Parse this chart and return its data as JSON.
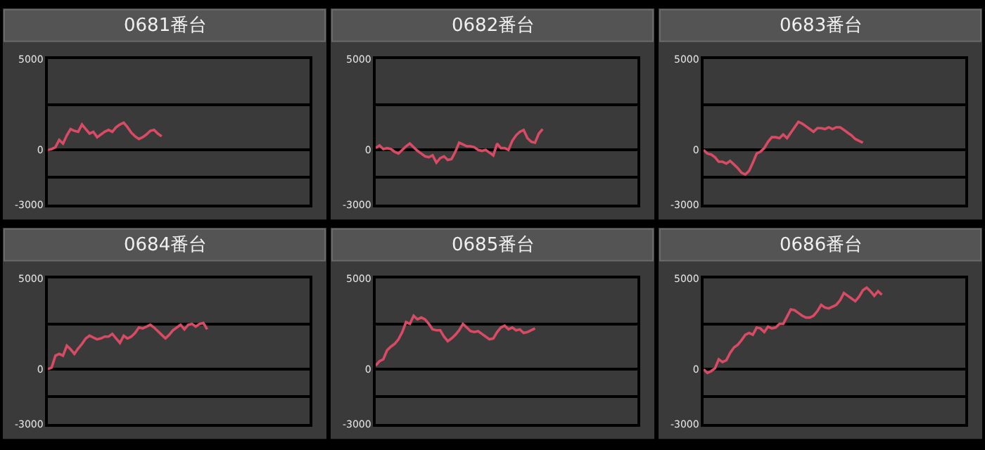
{
  "chart_data": [
    {
      "type": "line",
      "title": "0681番台",
      "categories": [
        null,
        null,
        null,
        null,
        null,
        null,
        null,
        null,
        null,
        null,
        null,
        null,
        null,
        null,
        null,
        null,
        null,
        null,
        null,
        null,
        null,
        null,
        null,
        null,
        null,
        null,
        null,
        null,
        null,
        null,
        null,
        null,
        null,
        null,
        null,
        null,
        null,
        null,
        null,
        null,
        null,
        null,
        null,
        null,
        null,
        null,
        null,
        null,
        null,
        null,
        null,
        null,
        null,
        null,
        null,
        null,
        null,
        null,
        null,
        null,
        null,
        null,
        null,
        null,
        null,
        null,
        null,
        null,
        null,
        null
      ],
      "series": [
        {
          "color": "#d94a64",
          "values": [
            0,
            50,
            150,
            550,
            350,
            800,
            1150,
            1050,
            1000,
            1400,
            1150,
            900,
            1000,
            700,
            850,
            1000,
            1100,
            1000,
            1250,
            1400,
            1500,
            1250,
            950,
            750,
            600,
            700,
            850,
            1050,
            1100,
            900,
            750,
            null,
            null,
            null,
            null,
            null,
            null,
            null,
            null,
            null,
            null,
            null,
            null,
            null,
            null,
            null,
            null,
            null,
            null,
            null,
            null,
            null,
            null,
            null,
            null,
            null,
            null,
            null,
            null,
            null,
            null,
            null,
            null,
            null,
            null,
            null,
            null,
            null,
            null,
            null
          ]
        }
      ],
      "ylim": [
        -3000,
        5000
      ],
      "yticks": [
        {
          "value": 5000,
          "label": "5000"
        },
        {
          "value": 2500,
          "label": null
        },
        0,
        {
          "value": -1500,
          "label": null
        },
        {
          "value": -3000,
          "label": "-3000"
        }
      ],
      "grid": "y",
      "tick_labels": "y"
    },
    {
      "type": "line",
      "title": "0682番台",
      "categories": [
        null,
        null,
        null,
        null,
        null,
        null,
        null,
        null,
        null,
        null,
        null,
        null,
        null,
        null,
        null,
        null,
        null,
        null,
        null,
        null,
        null,
        null,
        null,
        null,
        null,
        null,
        null,
        null,
        null,
        null,
        null,
        null,
        null,
        null,
        null,
        null,
        null,
        null,
        null,
        null,
        null,
        null,
        null,
        null,
        null,
        null,
        null,
        null,
        null,
        null,
        null,
        null,
        null,
        null,
        null,
        null,
        null,
        null,
        null,
        null,
        null,
        null,
        null,
        null,
        null,
        null,
        null,
        null,
        null,
        null
      ],
      "series": [
        {
          "color": "#d94a64",
          "values": [
            100,
            250,
            50,
            100,
            50,
            -100,
            -200,
            0,
            200,
            350,
            150,
            -50,
            -200,
            -350,
            -400,
            -300,
            -700,
            -450,
            -350,
            -550,
            -500,
            -100,
            400,
            300,
            200,
            200,
            150,
            0,
            -50,
            0,
            -150,
            -300,
            350,
            100,
            100,
            0,
            500,
            800,
            1000,
            1100,
            650,
            450,
            400,
            900,
            1150,
            null,
            null,
            null,
            null,
            null,
            null,
            null,
            null,
            null,
            null,
            null,
            null,
            null,
            null,
            null,
            null,
            null,
            null,
            null,
            null,
            null,
            null,
            null,
            null,
            null
          ]
        }
      ],
      "ylim": [
        -3000,
        5000
      ],
      "yticks": [
        {
          "value": 5000,
          "label": "5000"
        },
        {
          "value": 2500,
          "label": null
        },
        0,
        {
          "value": -1500,
          "label": null
        },
        {
          "value": -3000,
          "label": "-3000"
        }
      ],
      "grid": "y",
      "tick_labels": "y"
    },
    {
      "type": "line",
      "title": "0683番台",
      "categories": [
        null,
        null,
        null,
        null,
        null,
        null,
        null,
        null,
        null,
        null,
        null,
        null,
        null,
        null,
        null,
        null,
        null,
        null,
        null,
        null,
        null,
        null,
        null,
        null,
        null,
        null,
        null,
        null,
        null,
        null,
        null,
        null,
        null,
        null,
        null,
        null,
        null,
        null,
        null,
        null,
        null,
        null,
        null,
        null,
        null,
        null,
        null,
        null,
        null,
        null,
        null,
        null,
        null,
        null,
        null,
        null,
        null,
        null,
        null,
        null,
        null,
        null,
        null,
        null,
        null,
        null,
        null,
        null,
        null,
        null
      ],
      "series": [
        {
          "color": "#d94a64",
          "values": [
            0,
            -200,
            -250,
            -400,
            -650,
            -650,
            -750,
            -600,
            -800,
            -1000,
            -1250,
            -1350,
            -1150,
            -700,
            -200,
            -100,
            100,
            450,
            700,
            700,
            650,
            850,
            650,
            950,
            1250,
            1550,
            1450,
            1300,
            1150,
            1000,
            1200,
            1200,
            1150,
            1250,
            1150,
            1250,
            1250,
            1100,
            950,
            800,
            600,
            500,
            400,
            null,
            null,
            null,
            null,
            null,
            null,
            null,
            null,
            null,
            null,
            null,
            null,
            null,
            null,
            null,
            null,
            null,
            null,
            null,
            null,
            null,
            null,
            null,
            null,
            null,
            null,
            null
          ]
        }
      ],
      "ylim": [
        -3000,
        5000
      ],
      "yticks": [
        {
          "value": 5000,
          "label": "5000"
        },
        {
          "value": 2500,
          "label": null
        },
        0,
        {
          "value": -1500,
          "label": null
        },
        {
          "value": -3000,
          "label": "-3000"
        }
      ],
      "grid": "y",
      "tick_labels": "y"
    },
    {
      "type": "line",
      "title": "0684番台",
      "categories": [
        null,
        null,
        null,
        null,
        null,
        null,
        null,
        null,
        null,
        null,
        null,
        null,
        null,
        null,
        null,
        null,
        null,
        null,
        null,
        null,
        null,
        null,
        null,
        null,
        null,
        null,
        null,
        null,
        null,
        null,
        null,
        null,
        null,
        null,
        null,
        null,
        null,
        null,
        null,
        null,
        null,
        null,
        null,
        null,
        null,
        null,
        null,
        null,
        null,
        null,
        null,
        null,
        null,
        null,
        null,
        null,
        null,
        null,
        null,
        null,
        null,
        null,
        null,
        null,
        null,
        null,
        null,
        null,
        null,
        null
      ],
      "series": [
        {
          "color": "#d94a64",
          "values": [
            0,
            100,
            750,
            850,
            750,
            1300,
            1100,
            850,
            1150,
            1400,
            1700,
            1850,
            1750,
            1650,
            1700,
            1800,
            1800,
            1950,
            1700,
            1450,
            1850,
            1700,
            1800,
            2000,
            2300,
            2250,
            2350,
            2450,
            2300,
            2100,
            1900,
            1700,
            1900,
            2150,
            2300,
            2450,
            2200,
            2450,
            2500,
            2350,
            2500,
            2550,
            2200,
            null,
            null,
            null,
            null,
            null,
            null,
            null,
            null,
            null,
            null,
            null,
            null,
            null,
            null,
            null,
            null,
            null,
            null,
            null,
            null,
            null,
            null,
            null,
            null,
            null,
            null,
            null
          ]
        }
      ],
      "ylim": [
        -3000,
        5000
      ],
      "yticks": [
        {
          "value": 5000,
          "label": "5000"
        },
        {
          "value": 2500,
          "label": null
        },
        0,
        {
          "value": -1500,
          "label": null
        },
        {
          "value": -3000,
          "label": "-3000"
        }
      ],
      "grid": "y",
      "tick_labels": "y"
    },
    {
      "type": "line",
      "title": "0685番台",
      "categories": [
        null,
        null,
        null,
        null,
        null,
        null,
        null,
        null,
        null,
        null,
        null,
        null,
        null,
        null,
        null,
        null,
        null,
        null,
        null,
        null,
        null,
        null,
        null,
        null,
        null,
        null,
        null,
        null,
        null,
        null,
        null,
        null,
        null,
        null,
        null,
        null,
        null,
        null,
        null,
        null,
        null,
        null,
        null,
        null,
        null,
        null,
        null,
        null,
        null,
        null,
        null,
        null,
        null,
        null,
        null,
        null,
        null,
        null,
        null,
        null,
        null,
        null,
        null,
        null,
        null,
        null,
        null,
        null,
        null,
        null
      ],
      "series": [
        {
          "color": "#d94a64",
          "values": [
            200,
            450,
            550,
            1050,
            1250,
            1400,
            1650,
            2050,
            2600,
            2500,
            2950,
            2750,
            2850,
            2750,
            2500,
            2200,
            2150,
            2150,
            1800,
            1550,
            1700,
            1900,
            2150,
            2500,
            2300,
            2100,
            2050,
            2100,
            1950,
            1800,
            1650,
            1700,
            2050,
            2300,
            2400,
            2200,
            2300,
            2150,
            2200,
            2000,
            2050,
            2150,
            2250,
            null,
            null,
            null,
            null,
            null,
            null,
            null,
            null,
            null,
            null,
            null,
            null,
            null,
            null,
            null,
            null,
            null,
            null,
            null,
            null,
            null,
            null,
            null,
            null,
            null,
            null,
            null
          ]
        }
      ],
      "ylim": [
        -3000,
        5000
      ],
      "yticks": [
        {
          "value": 5000,
          "label": "5000"
        },
        {
          "value": 2500,
          "label": null
        },
        0,
        {
          "value": -1500,
          "label": null
        },
        {
          "value": -3000,
          "label": "-3000"
        }
      ],
      "grid": "y",
      "tick_labels": "y"
    },
    {
      "type": "line",
      "title": "0686番台",
      "categories": [
        null,
        null,
        null,
        null,
        null,
        null,
        null,
        null,
        null,
        null,
        null,
        null,
        null,
        null,
        null,
        null,
        null,
        null,
        null,
        null,
        null,
        null,
        null,
        null,
        null,
        null,
        null,
        null,
        null,
        null,
        null,
        null,
        null,
        null,
        null,
        null,
        null,
        null,
        null,
        null,
        null,
        null,
        null,
        null,
        null,
        null,
        null,
        null,
        null,
        null,
        null,
        null,
        null,
        null,
        null,
        null,
        null,
        null,
        null,
        null,
        null,
        null,
        null,
        null,
        null,
        null,
        null,
        null,
        null,
        null
      ],
      "series": [
        {
          "color": "#d94a64",
          "values": [
            0,
            -200,
            -100,
            50,
            550,
            400,
            500,
            900,
            1200,
            1350,
            1600,
            1900,
            2000,
            1900,
            2300,
            2250,
            2050,
            2350,
            2250,
            2300,
            2500,
            2500,
            2900,
            3300,
            3250,
            3100,
            2950,
            2850,
            2850,
            2950,
            3200,
            3550,
            3400,
            3350,
            3450,
            3550,
            3800,
            4200,
            4050,
            3900,
            3750,
            4000,
            4350,
            4500,
            4300,
            4050,
            4300,
            4100,
            null,
            null,
            null,
            null,
            null,
            null,
            null,
            null,
            null,
            null,
            null,
            null,
            null,
            null,
            null,
            null,
            null,
            null,
            null,
            null,
            null,
            null
          ]
        }
      ],
      "ylim": [
        -3000,
        5000
      ],
      "yticks": [
        {
          "value": 5000,
          "label": "5000"
        },
        {
          "value": 2500,
          "label": null
        },
        0,
        {
          "value": -1500,
          "label": null
        },
        {
          "value": -3000,
          "label": "-3000"
        }
      ],
      "grid": "y",
      "tick_labels": "y"
    }
  ]
}
